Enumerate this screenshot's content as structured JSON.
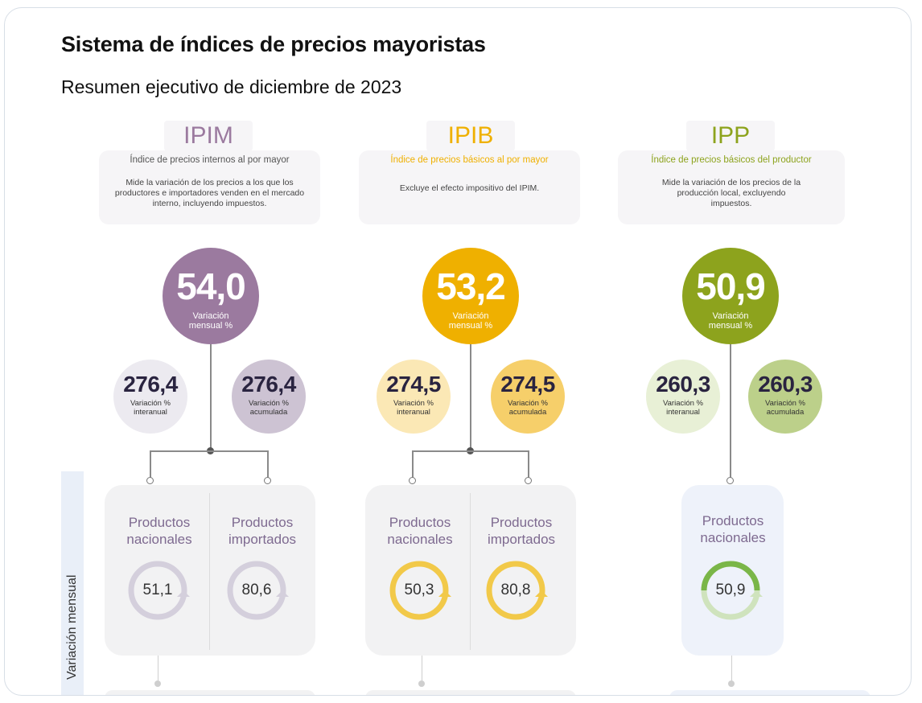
{
  "header": {
    "title": "Sistema de índices de precios mayoristas",
    "subtitle": "Resumen ejecutivo de diciembre de 2023"
  },
  "side_label": "Variación mensual",
  "indices": [
    {
      "name": "IPIM",
      "full_name": "Índice de precios internos al por mayor",
      "description": "Mide la variación de los precios a los que los productores e importadores venden en el mercado interno, incluyendo impuestos.",
      "monthly": {
        "value": "54,0",
        "label": "Variación mensual %"
      },
      "interannual": {
        "value": "276,4",
        "label": "Variación % interanual"
      },
      "accumulated": {
        "value": "276,4",
        "label": "Variación % acumulada"
      },
      "products": [
        {
          "label": "Productos nacionales",
          "value": "51,1"
        },
        {
          "label": "Productos importados",
          "value": "80,6"
        }
      ],
      "colors": {
        "main": "#9b7a9f",
        "light": "#e9e4ec",
        "mid": "#c7bccd",
        "text": "#7e6a90",
        "ring": "#d4cfdc"
      }
    },
    {
      "name": "IPIB",
      "full_name": "Índice de precios básicos al por mayor",
      "description": "Excluye el efecto impositivo del IPIM.",
      "monthly": {
        "value": "53,2",
        "label": "Variación mensual %"
      },
      "interannual": {
        "value": "274,5",
        "label": "Variación % interanual"
      },
      "accumulated": {
        "value": "274,5",
        "label": "Variación % acumulada"
      },
      "products": [
        {
          "label": "Productos nacionales",
          "value": "50,3"
        },
        {
          "label": "Productos importados",
          "value": "80,8"
        }
      ],
      "colors": {
        "main": "#efb000",
        "light": "#fbe8b5",
        "mid": "#f6cf6a",
        "text": "#7e6a90",
        "ring": "#f2c949"
      }
    },
    {
      "name": "IPP",
      "full_name": "Índice de precios básicos del productor",
      "description": "Mide la variación de los precios de la producción local, excluyendo impuestos.",
      "monthly": {
        "value": "50,9",
        "label": "Variación mensual %"
      },
      "interannual": {
        "value": "260,3",
        "label": "Variación % interanual"
      },
      "accumulated": {
        "value": "260,3",
        "label": "Variación % acumulada"
      },
      "products": [
        {
          "label": "Productos nacionales",
          "value": "50,9"
        }
      ],
      "colors": {
        "main": "#8da31d",
        "light": "#e8f0d6",
        "mid": "#bcd08a",
        "text": "#7e6a90",
        "ring": "#7ab648"
      }
    }
  ]
}
